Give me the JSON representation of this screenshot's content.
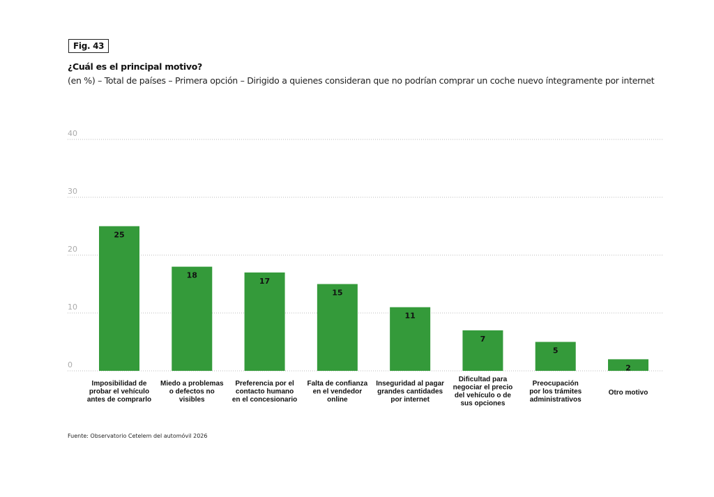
{
  "figure": {
    "badge": "Fig. 43",
    "title": "¿Cuál es el principal motivo?",
    "subtitle": "(en %) – Total de países – Primera opción – Dirigido a quienes consideran que no podrían comprar un coche nuevo íntegramente por internet",
    "source": "Fuente: Observatorio Cetelem del automóvil 2026"
  },
  "colors": {
    "bar": "#349a3a",
    "grid": "#bbbbbb",
    "tick_text": "#aaaaaa"
  },
  "chart_data": {
    "type": "bar",
    "title": "¿Cuál es el principal motivo?",
    "subtitle": "(en %) – Total de países – Primera opción – Dirigido a quienes consideran que no podrían comprar un coche nuevo íntegramente por internet",
    "xlabel": "",
    "ylabel": "",
    "ylim": [
      0,
      40
    ],
    "yticks": [
      0,
      10,
      20,
      30,
      40
    ],
    "grid": true,
    "legend": "none",
    "categories": [
      [
        "Imposibilidad de",
        "probar el vehículo",
        "antes de comprarlo"
      ],
      [
        "Miedo a problemas",
        "o defectos no",
        "visibles"
      ],
      [
        "Preferencia por el",
        "contacto humano",
        "en el concesionario"
      ],
      [
        "Falta de confianza",
        "en el vendedor",
        "online"
      ],
      [
        "Inseguridad al pagar",
        "grandes cantidades",
        "por internet"
      ],
      [
        "Dificultad para",
        "negociar el precio",
        "del vehículo o de",
        "sus opciones"
      ],
      [
        "Preocupación",
        "por los trámites",
        "administrativos"
      ],
      [
        "Otro motivo"
      ]
    ],
    "values": [
      25,
      18,
      17,
      15,
      11,
      7,
      5,
      2
    ]
  }
}
